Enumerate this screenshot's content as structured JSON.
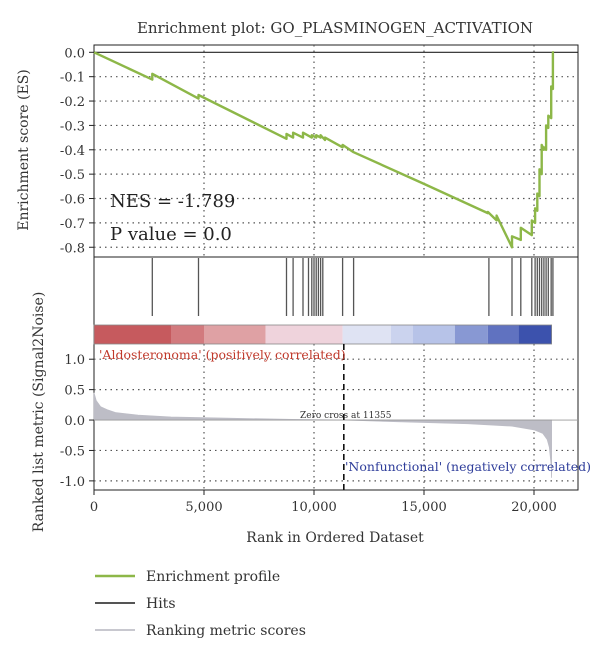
{
  "chart_data": {
    "type": "line",
    "title": "Enrichment plot: GO_PLASMINOGEN_ACTIVATION",
    "x_label": "Rank in Ordered Dataset",
    "x_range": [
      0,
      22000
    ],
    "x_ticks": [
      0,
      5000,
      10000,
      15000,
      20000
    ],
    "x_tick_labels": [
      "0",
      "5,000",
      "10,000",
      "15,000",
      "20,000"
    ],
    "grid": true,
    "top_panel": {
      "y_label": "Enrichment score (ES)",
      "y_range": [
        -0.84,
        0.03
      ],
      "y_ticks": [
        0.0,
        -0.1,
        -0.2,
        -0.3,
        -0.4,
        -0.5,
        -0.6,
        -0.7,
        -0.8
      ],
      "y_tick_labels": [
        "0.0",
        "-0.1",
        "-0.2",
        "-0.3",
        "-0.4",
        "-0.5",
        "-0.6",
        "-0.7",
        "-0.8"
      ],
      "series": [
        {
          "name": "Enrichment profile",
          "color": "#8db748",
          "x": [
            0,
            2650,
            2650,
            4750,
            4750,
            8750,
            8750,
            9050,
            9050,
            9500,
            9500,
            9900,
            9900,
            10100,
            10100,
            10300,
            10300,
            10500,
            10500,
            11300,
            11300,
            11800,
            11800,
            15000,
            15000,
            17900,
            17900,
            18300,
            18300,
            19000,
            19000,
            19400,
            19400,
            19900,
            19900,
            20050,
            20050,
            20150,
            20150,
            20250,
            20250,
            20350,
            20350,
            20450,
            20450,
            20550,
            20550,
            20650,
            20650,
            20780,
            20780,
            20860,
            20860,
            20900
          ],
          "y": [
            0.0,
            -0.112,
            -0.088,
            -0.19,
            -0.175,
            -0.355,
            -0.335,
            -0.35,
            -0.33,
            -0.35,
            -0.33,
            -0.35,
            -0.34,
            -0.35,
            -0.34,
            -0.35,
            -0.34,
            -0.36,
            -0.35,
            -0.39,
            -0.38,
            -0.41,
            -0.41,
            -0.54,
            -0.54,
            -0.66,
            -0.655,
            -0.69,
            -0.67,
            -0.8,
            -0.755,
            -0.77,
            -0.72,
            -0.75,
            -0.69,
            -0.7,
            -0.64,
            -0.65,
            -0.58,
            -0.59,
            -0.48,
            -0.5,
            -0.38,
            -0.4,
            -0.39,
            -0.4,
            -0.3,
            -0.31,
            -0.26,
            -0.27,
            -0.14,
            -0.15,
            0.0,
            0.0
          ]
        }
      ],
      "annotations": [
        "NES = -1.789",
        "P value = 0.0"
      ]
    },
    "hits": {
      "name": "Hits",
      "color": "#555555",
      "positions": [
        2650,
        4750,
        8750,
        9050,
        9500,
        9750,
        9900,
        10000,
        10100,
        10200,
        10300,
        10400,
        11300,
        11800,
        17950,
        19000,
        19400,
        19900,
        20050,
        20150,
        20250,
        20350,
        20450,
        20550,
        20650,
        20780,
        20860
      ]
    },
    "heat_bar": {
      "colors": [
        "#c65a5e",
        "#d27a7e",
        "#dfa1a4",
        "#efd3dc",
        "#dfe3f3",
        "#cbd3ee",
        "#b7c3e8",
        "#8898d3",
        "#6072c0",
        "#3c52ad"
      ],
      "boundaries": [
        0,
        3500,
        5000,
        7800,
        11300,
        13500,
        14500,
        16400,
        17900,
        19300,
        20800
      ]
    },
    "bottom_panel": {
      "y_label": "Ranked list metric (Signal2Noise)",
      "y_range": [
        -1.15,
        1.25
      ],
      "y_ticks": [
        1.0,
        0.5,
        0.0,
        -0.5,
        -1.0
      ],
      "y_tick_labels": [
        "1.0",
        "0.5",
        "0.0",
        "-0.5",
        "-1.0"
      ],
      "series": [
        {
          "name": "Ranking metric scores",
          "color": "#bdbdc6",
          "x": [
            0,
            100,
            300,
            600,
            1000,
            2000,
            3500,
            6000,
            9000,
            11355,
            14000,
            17000,
            19000,
            20000,
            20400,
            20600,
            20700,
            20780,
            20800
          ],
          "y": [
            0.45,
            0.32,
            0.22,
            0.17,
            0.12,
            0.08,
            0.05,
            0.03,
            0.01,
            0.0,
            -0.03,
            -0.06,
            -0.1,
            -0.16,
            -0.22,
            -0.32,
            -0.45,
            -0.75,
            -0.95
          ]
        }
      ],
      "zero_cross_x": 11355,
      "zero_cross_label": "Zero cross at 11355",
      "pos_label": "'Aldosteronoma' (positively correlated)",
      "neg_label": "'Nonfunctional' (negatively correlated)"
    },
    "legend": {
      "placement": "bottom-left",
      "items": [
        {
          "name": "Enrichment profile",
          "color": "#8db748"
        },
        {
          "name": "Hits",
          "color": "#555555"
        },
        {
          "name": "Ranking metric scores",
          "color": "#c8c8cf"
        }
      ]
    }
  }
}
